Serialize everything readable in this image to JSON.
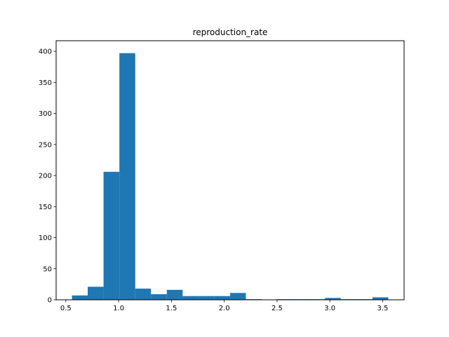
{
  "chart_data": {
    "type": "bar",
    "title": "reproduction_rate",
    "xlabel": "",
    "ylabel": "",
    "bins": [
      {
        "x0": 0.558,
        "x1": 0.707,
        "count": 7
      },
      {
        "x0": 0.707,
        "x1": 0.857,
        "count": 21
      },
      {
        "x0": 0.857,
        "x1": 1.007,
        "count": 206
      },
      {
        "x0": 1.007,
        "x1": 1.157,
        "count": 397
      },
      {
        "x0": 1.157,
        "x1": 1.306,
        "count": 18
      },
      {
        "x0": 1.306,
        "x1": 1.456,
        "count": 9
      },
      {
        "x0": 1.456,
        "x1": 1.606,
        "count": 16
      },
      {
        "x0": 1.606,
        "x1": 1.756,
        "count": 6
      },
      {
        "x0": 1.756,
        "x1": 1.905,
        "count": 6
      },
      {
        "x0": 1.905,
        "x1": 2.055,
        "count": 6
      },
      {
        "x0": 2.055,
        "x1": 2.205,
        "count": 11
      },
      {
        "x0": 2.205,
        "x1": 2.355,
        "count": 1
      },
      {
        "x0": 2.355,
        "x1": 2.504,
        "count": 0
      },
      {
        "x0": 2.504,
        "x1": 2.654,
        "count": 1
      },
      {
        "x0": 2.654,
        "x1": 2.804,
        "count": 1
      },
      {
        "x0": 2.804,
        "x1": 2.954,
        "count": 1
      },
      {
        "x0": 2.954,
        "x1": 3.103,
        "count": 3
      },
      {
        "x0": 3.103,
        "x1": 3.253,
        "count": 1
      },
      {
        "x0": 3.253,
        "x1": 3.403,
        "count": 1
      },
      {
        "x0": 3.403,
        "x1": 3.553,
        "count": 4
      }
    ],
    "xlim": [
      0.408,
      3.703
    ],
    "ylim": [
      0,
      417
    ],
    "xticks": [
      0.5,
      1.0,
      1.5,
      2.0,
      2.5,
      3.0,
      3.5
    ],
    "xtick_labels": [
      "0.5",
      "1.0",
      "1.5",
      "2.0",
      "2.5",
      "3.0",
      "3.5"
    ],
    "yticks": [
      0,
      50,
      100,
      150,
      200,
      250,
      300,
      350,
      400
    ],
    "ytick_labels": [
      "0",
      "50",
      "100",
      "150",
      "200",
      "250",
      "300",
      "350",
      "400"
    ],
    "grid": false,
    "bar_color": "#1f77b4"
  }
}
